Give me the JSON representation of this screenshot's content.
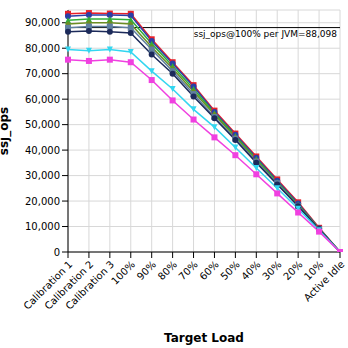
{
  "chart_data": {
    "type": "line",
    "x_label": "Target Load",
    "y_label": "ssj_ops",
    "categories": [
      "Calibration 1",
      "Calibration 2",
      "Calibration 3",
      "100%",
      "90%",
      "80%",
      "70%",
      "60%",
      "50%",
      "40%",
      "30%",
      "20%",
      "10%",
      "Active Idle"
    ],
    "series": [
      {
        "color": "#e8202a",
        "marker": "square",
        "values": [
          93500,
          93800,
          93600,
          93500,
          83500,
          74500,
          65500,
          55500,
          46500,
          37500,
          28500,
          19500,
          9500,
          0
        ]
      },
      {
        "color": "#2a3fa8",
        "marker": "circle",
        "values": [
          92500,
          93000,
          93000,
          92800,
          82800,
          74000,
          65000,
          55000,
          46000,
          37000,
          28000,
          19000,
          9300,
          0
        ]
      },
      {
        "color": "#2fae3a",
        "marker": "triangle",
        "values": [
          91000,
          91500,
          91500,
          91200,
          81800,
          73000,
          64000,
          54500,
          45500,
          36500,
          27500,
          18500,
          9200,
          0
        ]
      },
      {
        "color": "#6b8e23",
        "marker": "diamond",
        "values": [
          89500,
          90000,
          90000,
          89500,
          80500,
          72000,
          63000,
          54000,
          45000,
          36000,
          27000,
          18300,
          9100,
          0
        ]
      },
      {
        "color": "#5f7f9f",
        "marker": "square",
        "values": [
          88000,
          88500,
          88500,
          88000,
          79500,
          71000,
          62000,
          53000,
          44500,
          35500,
          27000,
          18000,
          9000,
          0
        ]
      },
      {
        "color": "#1c2a5a",
        "marker": "circle",
        "values": [
          86500,
          86800,
          86500,
          86000,
          77500,
          70000,
          61000,
          52500,
          44000,
          35000,
          26500,
          18000,
          9000,
          0
        ]
      },
      {
        "color": "#33d6f0",
        "marker": "triangle-down",
        "values": [
          79500,
          79000,
          79500,
          78500,
          71000,
          64000,
          56000,
          49000,
          41000,
          33000,
          25000,
          17000,
          8500,
          0
        ]
      },
      {
        "color": "#f040e0",
        "marker": "square",
        "values": [
          75500,
          75000,
          75500,
          74500,
          67500,
          59500,
          52000,
          45000,
          38000,
          30500,
          23000,
          15500,
          8000,
          0
        ]
      }
    ],
    "ylim": [
      0,
      95000
    ],
    "yticks": [
      0,
      {
        "value": 10000,
        "label": "10,000"
      },
      {
        "value": 20000,
        "label": "20,000"
      },
      {
        "value": 30000,
        "label": "30,000"
      },
      {
        "value": 40000,
        "label": "40,000"
      },
      {
        "value": 50000,
        "label": "50,000"
      },
      {
        "value": 60000,
        "label": "60,000"
      },
      {
        "value": 70000,
        "label": "70,000"
      },
      {
        "value": 80000,
        "label": "80,000"
      },
      {
        "value": 90000,
        "label": "90,000"
      }
    ],
    "annotations": [
      {
        "y": 88098,
        "text": "ssj_ops@100% per JVM=88,098"
      }
    ],
    "grid": true
  }
}
